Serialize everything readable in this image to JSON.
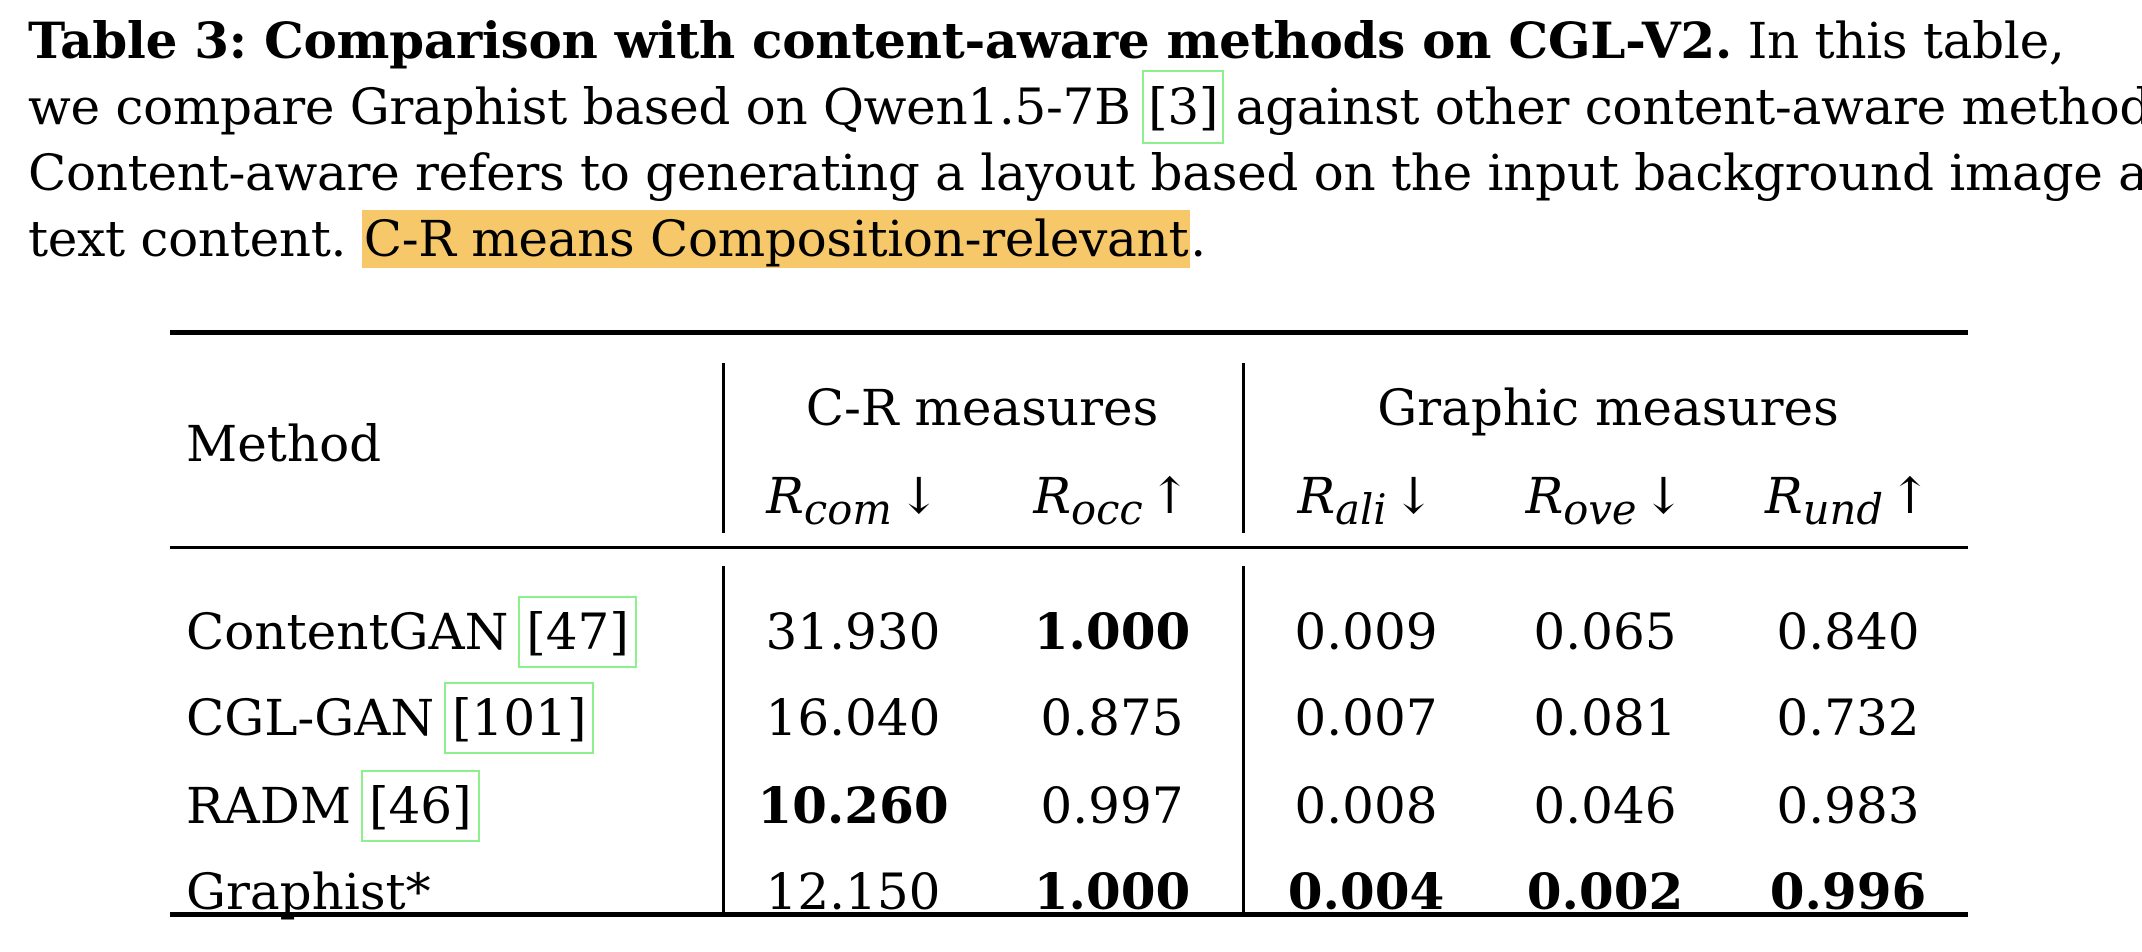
{
  "caption": {
    "label": "Table 3: Comparison with content-aware methods on CGL-V2.",
    "line1_rest": " In this table,",
    "line2_a": "we compare Graphist based on Qwen1.5-7B ",
    "line2_cite": "[3]",
    "line2_b": " against other content-aware methods.",
    "line3": "Content-aware refers to generating a layout based on the input background image and",
    "line4_a": "text content. ",
    "line4_highlight": "C-R means Composition-relevant",
    "line4_b": "."
  },
  "table": {
    "header": {
      "method": "Method",
      "group1": "C-R measures",
      "group2": "Graphic measures",
      "columns": [
        {
          "sym": "R",
          "sub": "com",
          "arrow": "↓"
        },
        {
          "sym": "R",
          "sub": "occ",
          "arrow": "↑"
        },
        {
          "sym": "R",
          "sub": "ali",
          "arrow": "↓"
        },
        {
          "sym": "R",
          "sub": "ove",
          "arrow": "↓"
        },
        {
          "sym": "R",
          "sub": "und",
          "arrow": "↑"
        }
      ]
    },
    "rows": [
      {
        "method": "ContentGAN ",
        "cite": "[47]",
        "values": [
          "31.930",
          "1.000",
          "0.009",
          "0.065",
          "0.840"
        ],
        "bold": [
          false,
          true,
          false,
          false,
          false
        ]
      },
      {
        "method": "CGL-GAN ",
        "cite": "[101]",
        "values": [
          "16.040",
          "0.875",
          "0.007",
          "0.081",
          "0.732"
        ],
        "bold": [
          false,
          false,
          false,
          false,
          false
        ]
      },
      {
        "method": "RADM ",
        "cite": "[46]",
        "values": [
          "10.260",
          "0.997",
          "0.008",
          "0.046",
          "0.983"
        ],
        "bold": [
          true,
          false,
          false,
          false,
          false
        ]
      },
      {
        "method": "Graphist*",
        "cite": "",
        "values": [
          "12.150",
          "1.000",
          "0.004",
          "0.002",
          "0.996"
        ],
        "bold": [
          false,
          true,
          true,
          true,
          true
        ]
      }
    ]
  },
  "colors": {
    "highlight": "#f6c86a",
    "citation_box": "#8df08d"
  }
}
